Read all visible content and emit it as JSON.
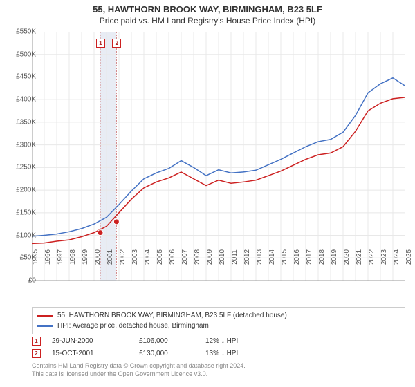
{
  "title": "55, HAWTHORN BROOK WAY, BIRMINGHAM, B23 5LF",
  "subtitle": "Price paid vs. HM Land Registry's House Price Index (HPI)",
  "chart": {
    "type": "line",
    "background_color": "#ffffff",
    "grid_color": "#e8e8e8",
    "axis_color": "#999999",
    "y_axis": {
      "min": 0,
      "max": 550,
      "ticks": [
        0,
        50,
        100,
        150,
        200,
        250,
        300,
        350,
        400,
        450,
        500,
        550
      ],
      "tick_labels": [
        "£0",
        "£50K",
        "£100K",
        "£150K",
        "£200K",
        "£250K",
        "£300K",
        "£350K",
        "£400K",
        "£450K",
        "£500K",
        "£550K"
      ],
      "label_fontsize": 10,
      "label_color": "#555555"
    },
    "x_axis": {
      "min": 1995,
      "max": 2025,
      "ticks": [
        1995,
        1996,
        1997,
        1998,
        1999,
        2000,
        2001,
        2002,
        2003,
        2004,
        2005,
        2006,
        2007,
        2008,
        2009,
        2010,
        2011,
        2012,
        2013,
        2014,
        2015,
        2016,
        2017,
        2018,
        2019,
        2020,
        2021,
        2022,
        2023,
        2024,
        2025
      ],
      "label_fontsize": 10,
      "label_color": "#555555",
      "label_rotation": -90
    },
    "series": [
      {
        "name": "property",
        "label": "55, HAWTHORN BROOK WAY, BIRMINGHAM, B23 5LF (detached house)",
        "color": "#cc2020",
        "line_width": 1.5,
        "data": [
          [
            1995,
            82
          ],
          [
            1996,
            83
          ],
          [
            1997,
            87
          ],
          [
            1998,
            90
          ],
          [
            1999,
            97
          ],
          [
            2000,
            106
          ],
          [
            2001,
            120
          ],
          [
            2002,
            150
          ],
          [
            2003,
            180
          ],
          [
            2004,
            205
          ],
          [
            2005,
            218
          ],
          [
            2006,
            227
          ],
          [
            2007,
            240
          ],
          [
            2008,
            225
          ],
          [
            2009,
            210
          ],
          [
            2010,
            222
          ],
          [
            2011,
            215
          ],
          [
            2012,
            218
          ],
          [
            2013,
            222
          ],
          [
            2014,
            232
          ],
          [
            2015,
            242
          ],
          [
            2016,
            255
          ],
          [
            2017,
            268
          ],
          [
            2018,
            278
          ],
          [
            2019,
            282
          ],
          [
            2020,
            296
          ],
          [
            2021,
            330
          ],
          [
            2022,
            375
          ],
          [
            2023,
            392
          ],
          [
            2024,
            402
          ],
          [
            2025,
            405
          ]
        ]
      },
      {
        "name": "hpi",
        "label": "HPI: Average price, detached house, Birmingham",
        "color": "#4472c4",
        "line_width": 1.5,
        "data": [
          [
            1995,
            98
          ],
          [
            1996,
            100
          ],
          [
            1997,
            103
          ],
          [
            1998,
            108
          ],
          [
            1999,
            115
          ],
          [
            2000,
            125
          ],
          [
            2001,
            140
          ],
          [
            2002,
            168
          ],
          [
            2003,
            198
          ],
          [
            2004,
            225
          ],
          [
            2005,
            238
          ],
          [
            2006,
            248
          ],
          [
            2007,
            265
          ],
          [
            2008,
            250
          ],
          [
            2009,
            232
          ],
          [
            2010,
            245
          ],
          [
            2011,
            238
          ],
          [
            2012,
            240
          ],
          [
            2013,
            244
          ],
          [
            2014,
            256
          ],
          [
            2015,
            268
          ],
          [
            2016,
            282
          ],
          [
            2017,
            296
          ],
          [
            2018,
            307
          ],
          [
            2019,
            312
          ],
          [
            2020,
            328
          ],
          [
            2021,
            365
          ],
          [
            2022,
            415
          ],
          [
            2023,
            435
          ],
          [
            2024,
            448
          ],
          [
            2025,
            430
          ]
        ]
      }
    ],
    "markers": [
      {
        "id": "1",
        "year": 2000.5,
        "value": 106,
        "color": "#cc2020"
      },
      {
        "id": "2",
        "year": 2001.8,
        "value": 130,
        "color": "#cc2020"
      }
    ],
    "marker_vlines_color": "#d08080",
    "marker_band_color": "#e8ecf4",
    "marker_label_border": "#cc2020",
    "marker_label_fontsize": 8
  },
  "legend": {
    "border_color": "#cccccc",
    "font_size": 10
  },
  "sales": [
    {
      "marker": "1",
      "date": "29-JUN-2000",
      "price": "£106,000",
      "change": "12% ↓ HPI"
    },
    {
      "marker": "2",
      "date": "15-OCT-2001",
      "price": "£130,000",
      "change": "13% ↓ HPI"
    }
  ],
  "footer": {
    "line1": "Contains HM Land Registry data © Crown copyright and database right 2024.",
    "line2": "This data is licensed under the Open Government Licence v3.0."
  }
}
